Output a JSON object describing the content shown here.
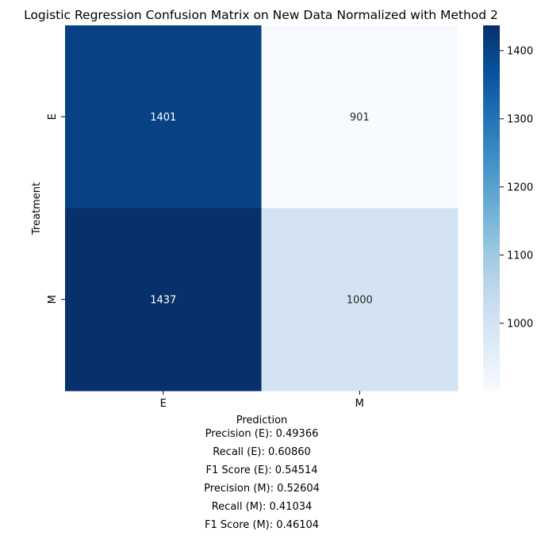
{
  "chart_data": {
    "type": "heatmap",
    "title": "Logistic Regression Confusion Matrix on New Data Normalized with Method 2",
    "xlabel": "Prediction",
    "ylabel": "Treatment",
    "x_categories": [
      "E",
      "M"
    ],
    "y_categories": [
      "E",
      "M"
    ],
    "matrix": [
      [
        1401,
        901
      ],
      [
        1437,
        1000
      ]
    ],
    "colormap": "Blues",
    "color_range": [
      901,
      1437
    ],
    "colorbar_ticks": [
      1000,
      1100,
      1200,
      1300,
      1400
    ],
    "colors": {
      "low": "#f7fbff",
      "high": "#08306b"
    }
  },
  "metrics": [
    "Precision (E): 0.49366",
    "Recall (E): 0.60860",
    "F1 Score (E): 0.54514",
    "Precision (M): 0.52604",
    "Recall (M): 0.41034",
    "F1 Score (M): 0.46104"
  ]
}
